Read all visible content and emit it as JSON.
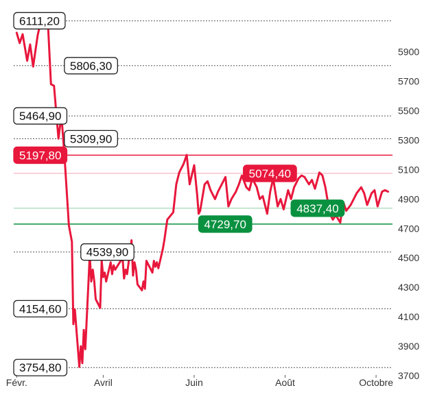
{
  "chart_data": {
    "type": "line",
    "title": "",
    "xlabel": "",
    "ylabel": "",
    "ylim": [
      3700,
      6150
    ],
    "y_ticks": [
      {
        "value": 3700,
        "label": "3700"
      },
      {
        "value": 3900,
        "label": "3900"
      },
      {
        "value": 4100,
        "label": "4100"
      },
      {
        "value": 4300,
        "label": "4300"
      },
      {
        "value": 4500,
        "label": "4500"
      },
      {
        "value": 4700,
        "label": "4700"
      },
      {
        "value": 4900,
        "label": "4900"
      },
      {
        "value": 5100,
        "label": "5100"
      },
      {
        "value": 5300,
        "label": "5300"
      },
      {
        "value": 5500,
        "label": "5500"
      },
      {
        "value": 5700,
        "label": "5700"
      },
      {
        "value": 5900,
        "label": "5900"
      }
    ],
    "x_ticks": [
      {
        "date": "2020-02-03",
        "label": "Févr."
      },
      {
        "date": "2020-04-01",
        "label": "Avril"
      },
      {
        "date": "2020-06-01",
        "label": "Juin"
      },
      {
        "date": "2020-08-01",
        "label": "Août"
      },
      {
        "date": "2020-10-01",
        "label": "Octobre"
      }
    ],
    "xlim": [
      "2020-02-01",
      "2020-10-12"
    ],
    "line_color": "#e8173c",
    "levels": [
      {
        "value": 6111.2,
        "label": "6111,20",
        "style": "dotted",
        "box": "outline",
        "date": "2020-02-01"
      },
      {
        "value": 5806.3,
        "label": "5806,30",
        "style": "dotted",
        "box": "outline",
        "date": "2020-03-06"
      },
      {
        "value": 5464.9,
        "label": "5464,90",
        "style": "dotted",
        "box": "outline",
        "date": "2020-02-01"
      },
      {
        "value": 5309.9,
        "label": "5309,90",
        "style": "dotted",
        "box": "outline",
        "date": "2020-03-06"
      },
      {
        "value": 5197.8,
        "label": "5197,80",
        "style": "solid",
        "box": "red",
        "date": "2020-02-01"
      },
      {
        "value": 5074.4,
        "label": "5074,40",
        "style": "solid-light",
        "box": "red",
        "date": "2020-07-04"
      },
      {
        "value": 4837.4,
        "label": "4837,40",
        "style": "solid-light",
        "box": "green",
        "date": "2020-08-05"
      },
      {
        "value": 4729.7,
        "label": "4729,70",
        "style": "solid",
        "box": "green",
        "date": "2020-06-04"
      },
      {
        "value": 4539.9,
        "label": "4539,90",
        "style": "dotted",
        "box": "outline",
        "date": "2020-03-17"
      },
      {
        "value": 4154.6,
        "label": "4154,60",
        "style": "dotted",
        "box": "outline",
        "date": "2020-02-01"
      },
      {
        "value": 3754.8,
        "label": "3754,80",
        "style": "dotted",
        "box": "outline",
        "date": "2020-02-01"
      }
    ],
    "series": [
      {
        "points": [
          [
            "2020-02-03",
            6030
          ],
          [
            "2020-02-05",
            5960
          ],
          [
            "2020-02-07",
            6020
          ],
          [
            "2020-02-10",
            5840
          ],
          [
            "2020-02-12",
            5950
          ],
          [
            "2020-02-14",
            5800
          ],
          [
            "2020-02-17",
            6010
          ],
          [
            "2020-02-19",
            6100
          ],
          [
            "2020-02-21",
            6111
          ],
          [
            "2020-02-24",
            6080
          ],
          [
            "2020-02-26",
            5680
          ],
          [
            "2020-02-28",
            5670
          ],
          [
            "2020-03-02",
            5310
          ],
          [
            "2020-03-04",
            5470
          ],
          [
            "2020-03-06",
            5200
          ],
          [
            "2020-03-09",
            4720
          ],
          [
            "2020-03-11",
            4610
          ],
          [
            "2020-03-12",
            4050
          ],
          [
            "2020-03-13",
            4150
          ],
          [
            "2020-03-16",
            3760
          ],
          [
            "2020-03-17",
            3900
          ],
          [
            "2020-03-18",
            3785
          ],
          [
            "2020-03-19",
            4010
          ],
          [
            "2020-03-20",
            3880
          ],
          [
            "2020-03-23",
            4520
          ],
          [
            "2020-03-24",
            4340
          ],
          [
            "2020-03-25",
            4420
          ],
          [
            "2020-03-26",
            4340
          ],
          [
            "2020-03-27",
            4220
          ],
          [
            "2020-03-30",
            4160
          ],
          [
            "2020-03-31",
            4480
          ],
          [
            "2020-04-01",
            4370
          ],
          [
            "2020-04-02",
            4400
          ],
          [
            "2020-04-03",
            4340
          ],
          [
            "2020-04-06",
            4470
          ],
          [
            "2020-04-07",
            4390
          ],
          [
            "2020-04-08",
            4450
          ],
          [
            "2020-04-09",
            4420
          ],
          [
            "2020-04-14",
            4500
          ],
          [
            "2020-04-15",
            4360
          ],
          [
            "2020-04-16",
            4420
          ],
          [
            "2020-04-17",
            4390
          ],
          [
            "2020-04-20",
            4620
          ],
          [
            "2020-04-21",
            4380
          ],
          [
            "2020-04-22",
            4470
          ],
          [
            "2020-04-23",
            4420
          ],
          [
            "2020-04-24",
            4320
          ],
          [
            "2020-04-27",
            4280
          ],
          [
            "2020-04-28",
            4340
          ],
          [
            "2020-04-29",
            4290
          ],
          [
            "2020-04-30",
            4480
          ],
          [
            "2020-05-04",
            4400
          ],
          [
            "2020-05-05",
            4480
          ],
          [
            "2020-05-06",
            4440
          ],
          [
            "2020-05-07",
            4470
          ],
          [
            "2020-05-08",
            4430
          ],
          [
            "2020-05-11",
            4560
          ],
          [
            "2020-05-12",
            4620
          ],
          [
            "2020-05-14",
            4760
          ],
          [
            "2020-05-18",
            4810
          ],
          [
            "2020-05-20",
            5000
          ],
          [
            "2020-05-22",
            5080
          ],
          [
            "2020-05-25",
            5140
          ],
          [
            "2020-05-27",
            5200
          ],
          [
            "2020-05-29",
            5000
          ],
          [
            "2020-06-01",
            5130
          ],
          [
            "2020-06-03",
            4930
          ],
          [
            "2020-06-04",
            4800
          ],
          [
            "2020-06-05",
            4820
          ],
          [
            "2020-06-08",
            5000
          ],
          [
            "2020-06-10",
            5020
          ],
          [
            "2020-06-12",
            4960
          ],
          [
            "2020-06-15",
            4900
          ],
          [
            "2020-06-17",
            4950
          ],
          [
            "2020-06-19",
            4990
          ],
          [
            "2020-06-22",
            5050
          ],
          [
            "2020-06-24",
            4850
          ],
          [
            "2020-06-26",
            4900
          ],
          [
            "2020-06-29",
            4950
          ],
          [
            "2020-07-01",
            5000
          ],
          [
            "2020-07-03",
            5060
          ],
          [
            "2020-07-06",
            4980
          ],
          [
            "2020-07-08",
            4960
          ],
          [
            "2020-07-10",
            5040
          ],
          [
            "2020-07-13",
            4980
          ],
          [
            "2020-07-15",
            4900
          ],
          [
            "2020-07-17",
            4920
          ],
          [
            "2020-07-20",
            4800
          ],
          [
            "2020-07-22",
            4950
          ],
          [
            "2020-07-24",
            5040
          ],
          [
            "2020-07-27",
            4850
          ],
          [
            "2020-07-29",
            4900
          ],
          [
            "2020-07-31",
            4830
          ],
          [
            "2020-08-03",
            4960
          ],
          [
            "2020-08-05",
            4900
          ],
          [
            "2020-08-07",
            4980
          ],
          [
            "2020-08-10",
            5040
          ],
          [
            "2020-08-12",
            5060
          ],
          [
            "2020-08-14",
            5050
          ],
          [
            "2020-08-17",
            5000
          ],
          [
            "2020-08-19",
            5030
          ],
          [
            "2020-08-21",
            4970
          ],
          [
            "2020-08-24",
            5080
          ],
          [
            "2020-08-26",
            5060
          ],
          [
            "2020-08-28",
            4980
          ],
          [
            "2020-08-31",
            4800
          ],
          [
            "2020-09-02",
            4760
          ],
          [
            "2020-09-04",
            4790
          ],
          [
            "2020-09-07",
            4740
          ],
          [
            "2020-09-09",
            4880
          ],
          [
            "2020-09-11",
            4820
          ],
          [
            "2020-09-14",
            4860
          ],
          [
            "2020-09-16",
            4900
          ],
          [
            "2020-09-18",
            4940
          ],
          [
            "2020-09-21",
            4980
          ],
          [
            "2020-09-23",
            4940
          ],
          [
            "2020-09-25",
            4860
          ],
          [
            "2020-09-28",
            4940
          ],
          [
            "2020-09-30",
            4960
          ],
          [
            "2020-10-02",
            4850
          ],
          [
            "2020-10-05",
            4950
          ],
          [
            "2020-10-07",
            4960
          ],
          [
            "2020-10-09",
            4950
          ]
        ]
      }
    ]
  }
}
